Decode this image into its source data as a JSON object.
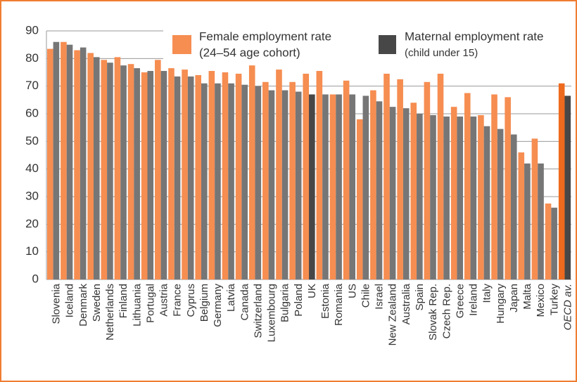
{
  "chart_data": {
    "type": "bar",
    "categories": [
      "Slovenia",
      "Iceland",
      "Denmark",
      "Sweden",
      "Netherlands",
      "Finland",
      "Lithuania",
      "Portugal",
      "Austria",
      "France",
      "Cyprus",
      "Belgium",
      "Germany",
      "Latvia",
      "Canada",
      "Switzerland",
      "Luxembourg",
      "Bulgaria",
      "Poland",
      "UK",
      "Estonia",
      "Romania",
      "US",
      "Chile",
      "Israel",
      "New Zealand",
      "Australia",
      "Spain",
      "Slovak Rep.",
      "Czech Rep.",
      "Greece",
      "Ireland",
      "Italy",
      "Hungary",
      "Japan",
      "Malta",
      "Mexico",
      "Turkey",
      "OECD av."
    ],
    "series": [
      {
        "name": "Female employment rate",
        "name_note": "(24–54 age cohort)",
        "color": "#f68d51",
        "highlight": {
          "OECD av.": "#ee6a1e"
        },
        "values": [
          83.5,
          86,
          83,
          82,
          79.5,
          80.5,
          78,
          75,
          79.5,
          76.5,
          76,
          74,
          75.5,
          75,
          74.5,
          77.5,
          71.5,
          76,
          71.5,
          74.5,
          75.5,
          67,
          72,
          58,
          68.5,
          74.5,
          72.5,
          64,
          71.5,
          74.5,
          62.5,
          67.5,
          59.5,
          67,
          66,
          46,
          51,
          27.5,
          71
        ]
      },
      {
        "name": "Maternal employment rate",
        "name_note": "(child under 15)",
        "color": "#767676",
        "highlight": {
          "UK": "#474747",
          "OECD av.": "#474747"
        },
        "values": [
          86,
          85,
          84,
          80.5,
          78.5,
          77.5,
          76.5,
          75.5,
          75.5,
          73.5,
          73.5,
          71,
          71,
          71,
          70.5,
          70,
          68.5,
          68.5,
          68,
          67,
          67,
          67,
          67,
          66.5,
          64.5,
          62.5,
          62,
          60,
          59.5,
          59,
          59,
          59,
          55.5,
          54.5,
          52.5,
          42,
          42,
          26,
          66.5
        ]
      }
    ],
    "italic_categories": [
      "OECD av."
    ],
    "legend_swatch": "#474747",
    "ylim": [
      0,
      90
    ],
    "yticks": [
      0,
      10,
      20,
      30,
      40,
      50,
      60,
      70,
      80,
      90
    ],
    "grid": true
  }
}
